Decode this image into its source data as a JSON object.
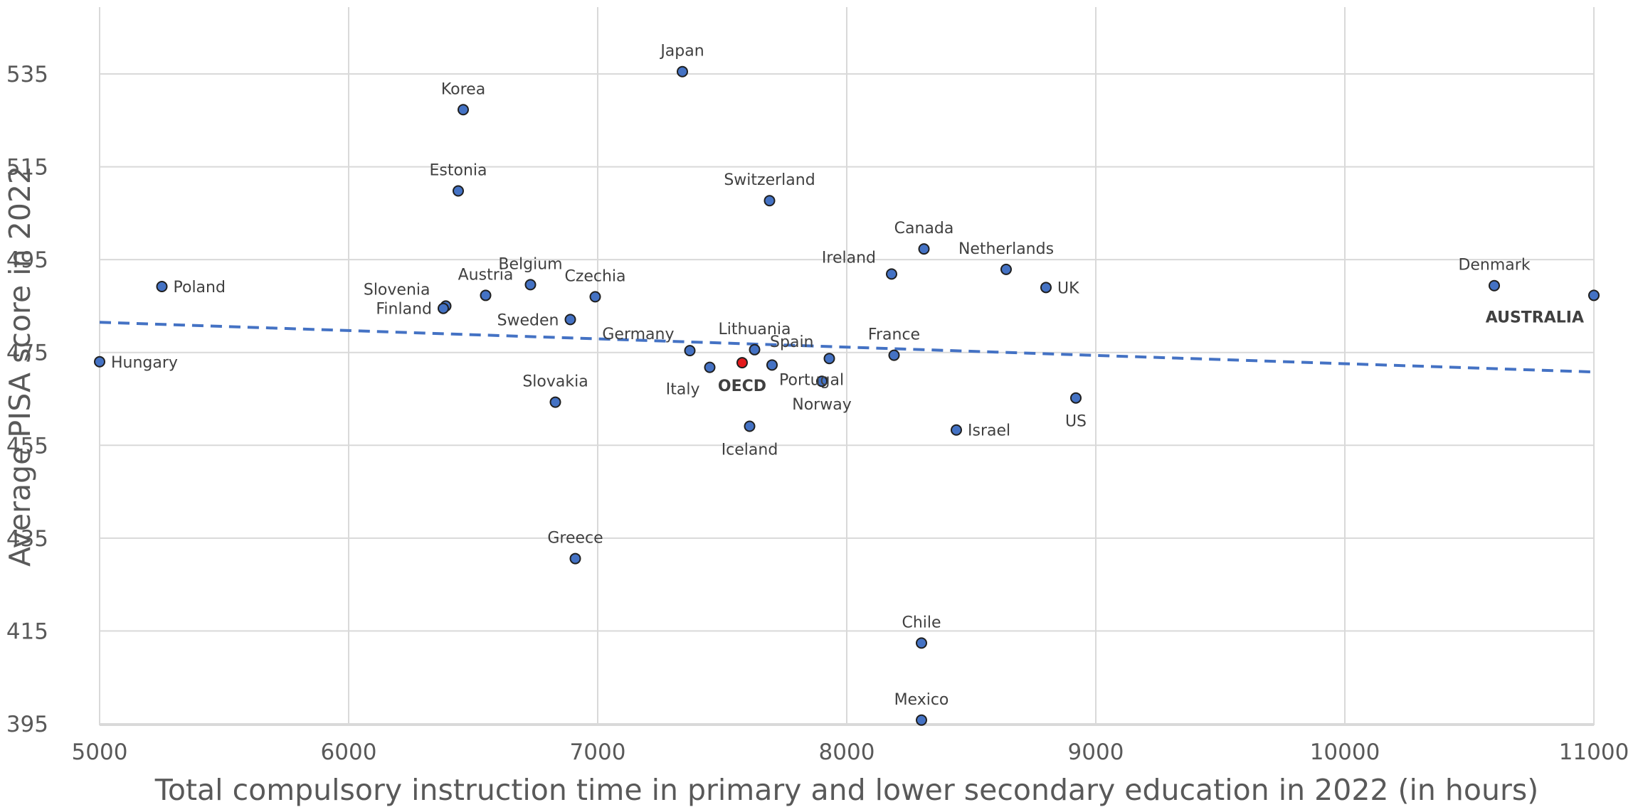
{
  "chart_data": {
    "type": "scatter",
    "xlabel": "Total compulsory instruction time in primary and lower secondary education in 2022 (in hours)",
    "ylabel": "Average PISA score in 2022",
    "xlim": [
      5000,
      11000
    ],
    "ylim": [
      395,
      550
    ],
    "xticks": [
      "5000",
      "6000",
      "7000",
      "8000",
      "9000",
      "10000",
      "11000"
    ],
    "yticks": [
      "395",
      "415",
      "435",
      "455",
      "475",
      "495",
      "515",
      "535"
    ],
    "grid": true,
    "point_color": "#4472c4",
    "highlight_color": "#e31a1c",
    "trendline": {
      "style": "dashed",
      "color": "#4472c4",
      "x": [
        5000,
        11000
      ],
      "y": [
        481.5,
        470.8
      ]
    },
    "points": [
      {
        "label": "Japan",
        "x": 7340,
        "y": 535.5,
        "pos": "top"
      },
      {
        "label": "Korea",
        "x": 6460,
        "y": 527.3,
        "pos": "top"
      },
      {
        "label": "Estonia",
        "x": 6440,
        "y": 509.8,
        "pos": "top"
      },
      {
        "label": "Switzerland",
        "x": 7690,
        "y": 507.7,
        "pos": "top"
      },
      {
        "label": "Canada",
        "x": 8310,
        "y": 497.3,
        "pos": "top"
      },
      {
        "label": "Ireland",
        "x": 8180,
        "y": 491.9,
        "pos": "topleft"
      },
      {
        "label": "Netherlands",
        "x": 8640,
        "y": 492.9,
        "pos": "top"
      },
      {
        "label": "UK",
        "x": 8800,
        "y": 489.0,
        "pos": "right"
      },
      {
        "label": "Denmark",
        "x": 10600,
        "y": 489.4,
        "pos": "top"
      },
      {
        "label": "AUSTRALIA",
        "x": 11000,
        "y": 487.3,
        "pos": "belowleft",
        "bold": true
      },
      {
        "label": "Poland",
        "x": 5250,
        "y": 489.2,
        "pos": "right"
      },
      {
        "label": "Hungary",
        "x": 5000,
        "y": 473.0,
        "pos": "right"
      },
      {
        "label": "Slovenia",
        "x": 6390,
        "y": 485.0,
        "pos": "topleft"
      },
      {
        "label": "Finland",
        "x": 6380,
        "y": 484.5,
        "pos": "left"
      },
      {
        "label": "Austria",
        "x": 6550,
        "y": 487.3,
        "pos": "top"
      },
      {
        "label": "Belgium",
        "x": 6730,
        "y": 489.6,
        "pos": "top"
      },
      {
        "label": "Czechia",
        "x": 6990,
        "y": 487.0,
        "pos": "top"
      },
      {
        "label": "Sweden",
        "x": 6890,
        "y": 482.1,
        "pos": "left"
      },
      {
        "label": "Slovakia",
        "x": 6830,
        "y": 464.3,
        "pos": "top"
      },
      {
        "label": "Germany",
        "x": 7370,
        "y": 475.4,
        "pos": "topleft"
      },
      {
        "label": "Italy",
        "x": 7450,
        "y": 471.8,
        "pos": "belowleft"
      },
      {
        "label": "OECD",
        "x": 7580,
        "y": 472.8,
        "pos": "below",
        "highlight": true
      },
      {
        "label": "Lithuania",
        "x": 7630,
        "y": 475.6,
        "pos": "top"
      },
      {
        "label": "Portugal",
        "x": 7700,
        "y": 472.3,
        "pos": "belowright"
      },
      {
        "label": "Spain",
        "x": 7930,
        "y": 473.7,
        "pos": "topleft"
      },
      {
        "label": "Norway",
        "x": 7900,
        "y": 468.8,
        "pos": "below"
      },
      {
        "label": "France",
        "x": 8190,
        "y": 474.4,
        "pos": "top"
      },
      {
        "label": "Iceland",
        "x": 7610,
        "y": 459.1,
        "pos": "below"
      },
      {
        "label": "Israel",
        "x": 8440,
        "y": 458.3,
        "pos": "right"
      },
      {
        "label": "US",
        "x": 8920,
        "y": 465.2,
        "pos": "below"
      },
      {
        "label": "Greece",
        "x": 6910,
        "y": 430.6,
        "pos": "top"
      },
      {
        "label": "Chile",
        "x": 8300,
        "y": 412.4,
        "pos": "top"
      },
      {
        "label": "Mexico",
        "x": 8300,
        "y": 395.8,
        "pos": "top"
      }
    ]
  }
}
